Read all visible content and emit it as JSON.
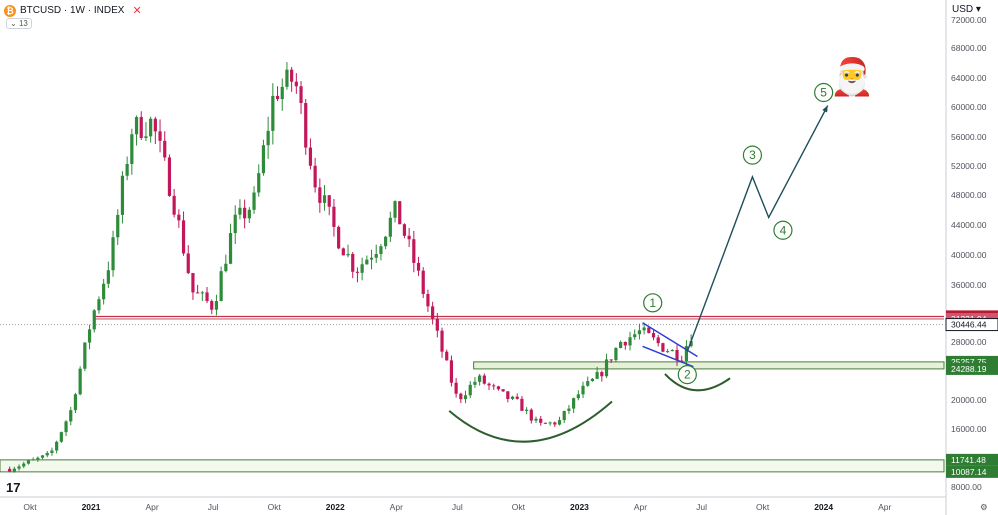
{
  "header": {
    "coin_icon": "bitcoin-icon",
    "symbol": "BTCUSD · 1W · INDEX",
    "indicator_count": "13",
    "currency": "USD"
  },
  "chart_data": {
    "type": "candlestick",
    "x_axis": {
      "labels": [
        {
          "text": "Okt",
          "t": 0.0
        },
        {
          "text": "2021",
          "t": 3.0,
          "bold": true
        },
        {
          "text": "Apr",
          "t": 6.0
        },
        {
          "text": "Jul",
          "t": 9.0
        },
        {
          "text": "Okt",
          "t": 12.0
        },
        {
          "text": "2022",
          "t": 15.0,
          "bold": true
        },
        {
          "text": "Apr",
          "t": 18.0
        },
        {
          "text": "Jul",
          "t": 21.0
        },
        {
          "text": "Okt",
          "t": 24.0
        },
        {
          "text": "2023",
          "t": 27.0,
          "bold": true
        },
        {
          "text": "Apr",
          "t": 30.0
        },
        {
          "text": "Jul",
          "t": 33.0
        },
        {
          "text": "Okt",
          "t": 36.0
        },
        {
          "text": "2024",
          "t": 39.0,
          "bold": true
        },
        {
          "text": "Apr",
          "t": 42.0
        }
      ]
    },
    "y_axis": {
      "ticks": [
        72000,
        68000,
        64000,
        60000,
        56000,
        52000,
        48000,
        44000,
        40000,
        36000,
        28000,
        20000,
        16000,
        8000
      ],
      "tick_labels": [
        "72000.00",
        "68000.00",
        "64000.00",
        "60000.00",
        "56000.00",
        "52000.00",
        "48000.00",
        "44000.00",
        "40000.00",
        "36000.00",
        "28000.00",
        "20000.00",
        "16000.00",
        "8000.00"
      ],
      "range": [
        7000,
        74000
      ]
    },
    "price_labels": [
      {
        "text": "31592.84",
        "value": 31592.84,
        "color": "#b71c35"
      },
      {
        "text": "31221.94",
        "value": 31221.94,
        "color": "#d4566e"
      },
      {
        "text": "30446.44",
        "value": 30446.44,
        "color": "#ffffff"
      },
      {
        "text": "25257.75",
        "value": 25257.75,
        "color": "#2e7d32"
      },
      {
        "text": "24288.19",
        "value": 24288.19,
        "color": "#2e7d32"
      },
      {
        "text": "11741.48",
        "value": 11741.48,
        "color": "#2e7d32"
      },
      {
        "text": "10087.14",
        "value": 10087.14,
        "color": "#2e7d32"
      }
    ],
    "levels": {
      "resistance": [
        31592.84,
        31221.94
      ],
      "support_band": [
        24288.19,
        25257.75
      ],
      "bottom_band": [
        10087.14,
        11741.48
      ],
      "last_price": 30446.44
    },
    "anchors": [
      {
        "t": -1.0,
        "p": 10500
      },
      {
        "t": 1.0,
        "p": 12500
      },
      {
        "t": 2.0,
        "p": 18500
      },
      {
        "t": 3.0,
        "p": 31000
      },
      {
        "t": 4.0,
        "p": 40000
      },
      {
        "t": 5.0,
        "p": 57000
      },
      {
        "t": 6.0,
        "p": 58000
      },
      {
        "t": 7.0,
        "p": 48000
      },
      {
        "t": 8.0,
        "p": 35000
      },
      {
        "t": 9.0,
        "p": 33000
      },
      {
        "t": 10.0,
        "p": 44000
      },
      {
        "t": 11.0,
        "p": 47000
      },
      {
        "t": 12.0,
        "p": 62000
      },
      {
        "t": 13.0,
        "p": 64000
      },
      {
        "t": 14.0,
        "p": 50000
      },
      {
        "t": 15.0,
        "p": 43000
      },
      {
        "t": 16.0,
        "p": 38000
      },
      {
        "t": 17.0,
        "p": 41000
      },
      {
        "t": 18.0,
        "p": 46000
      },
      {
        "t": 19.0,
        "p": 38000
      },
      {
        "t": 20.0,
        "p": 29000
      },
      {
        "t": 21.0,
        "p": 20000
      },
      {
        "t": 22.0,
        "p": 23000
      },
      {
        "t": 23.0,
        "p": 21000
      },
      {
        "t": 24.0,
        "p": 19500
      },
      {
        "t": 25.0,
        "p": 16500
      },
      {
        "t": 26.0,
        "p": 17000
      },
      {
        "t": 27.0,
        "p": 21000
      },
      {
        "t": 28.0,
        "p": 23500
      },
      {
        "t": 29.0,
        "p": 28000
      },
      {
        "t": 30.0,
        "p": 29500
      },
      {
        "t": 31.0,
        "p": 27500
      },
      {
        "t": 32.0,
        "p": 26000
      },
      {
        "t": 32.7,
        "p": 30400
      }
    ],
    "annotations": {
      "waves": [
        {
          "text": "1",
          "t": 30.6,
          "p": 33500
        },
        {
          "text": "2",
          "t": 32.3,
          "p": 23500
        },
        {
          "text": "3",
          "t": 35.5,
          "p": 53500
        },
        {
          "text": "4",
          "t": 37.0,
          "p": 43300
        },
        {
          "text": "5",
          "t": 39.0,
          "p": 62000
        }
      ],
      "projection": [
        {
          "t": 32.3,
          "p": 26700
        },
        {
          "t": 35.5,
          "p": 50500
        },
        {
          "t": 36.3,
          "p": 45000
        },
        {
          "t": 39.2,
          "p": 60200
        }
      ],
      "emoji": "🎅"
    }
  }
}
